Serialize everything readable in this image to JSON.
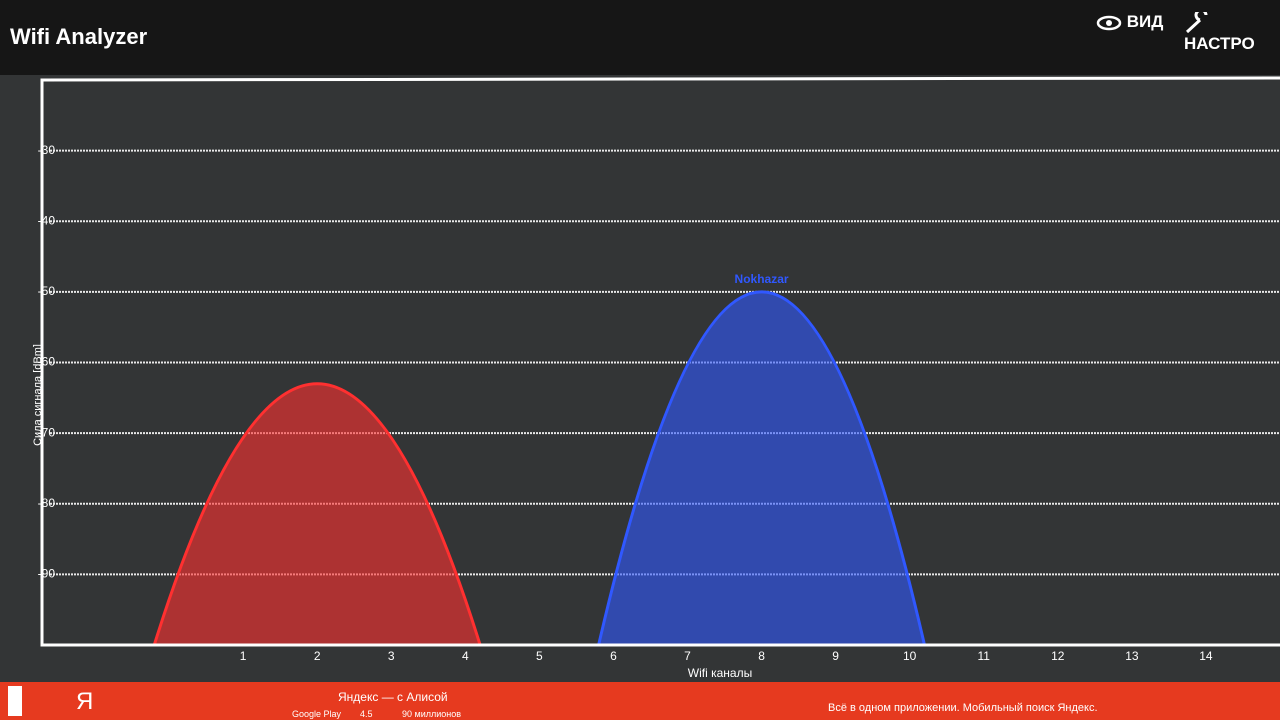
{
  "header": {
    "title": "Wifi Analyzer",
    "actions": [
      "ВИД",
      "НАСТРО"
    ]
  },
  "chart_data": {
    "type": "wifi-channel",
    "y_label": "Сила сигнала [dBm]",
    "x_label": "Wifi каналы",
    "ylim": [
      -100,
      -20
    ],
    "yticks": [
      -30,
      -40,
      -50,
      -60,
      -70,
      -80,
      -90
    ],
    "xlim": [
      -1,
      15
    ],
    "xticks": [
      1,
      2,
      3,
      4,
      5,
      6,
      7,
      8,
      9,
      10,
      11,
      12,
      13,
      14
    ],
    "grid": true,
    "networks": [
      {
        "color": "#ff3030",
        "channel": 2,
        "signal": -63
      },
      {
        "ssid": "Nokhazar",
        "color": "#3058ff",
        "channel": 8,
        "signal": -50
      }
    ]
  },
  "ad": {
    "logo": "Я",
    "app": "Яндекс — с Алисой",
    "store": "Google Play",
    "rating": "4.5",
    "installs": "90 миллионов",
    "tagline": "Всё в одном приложении. Мобильный поиск Яндекс."
  }
}
